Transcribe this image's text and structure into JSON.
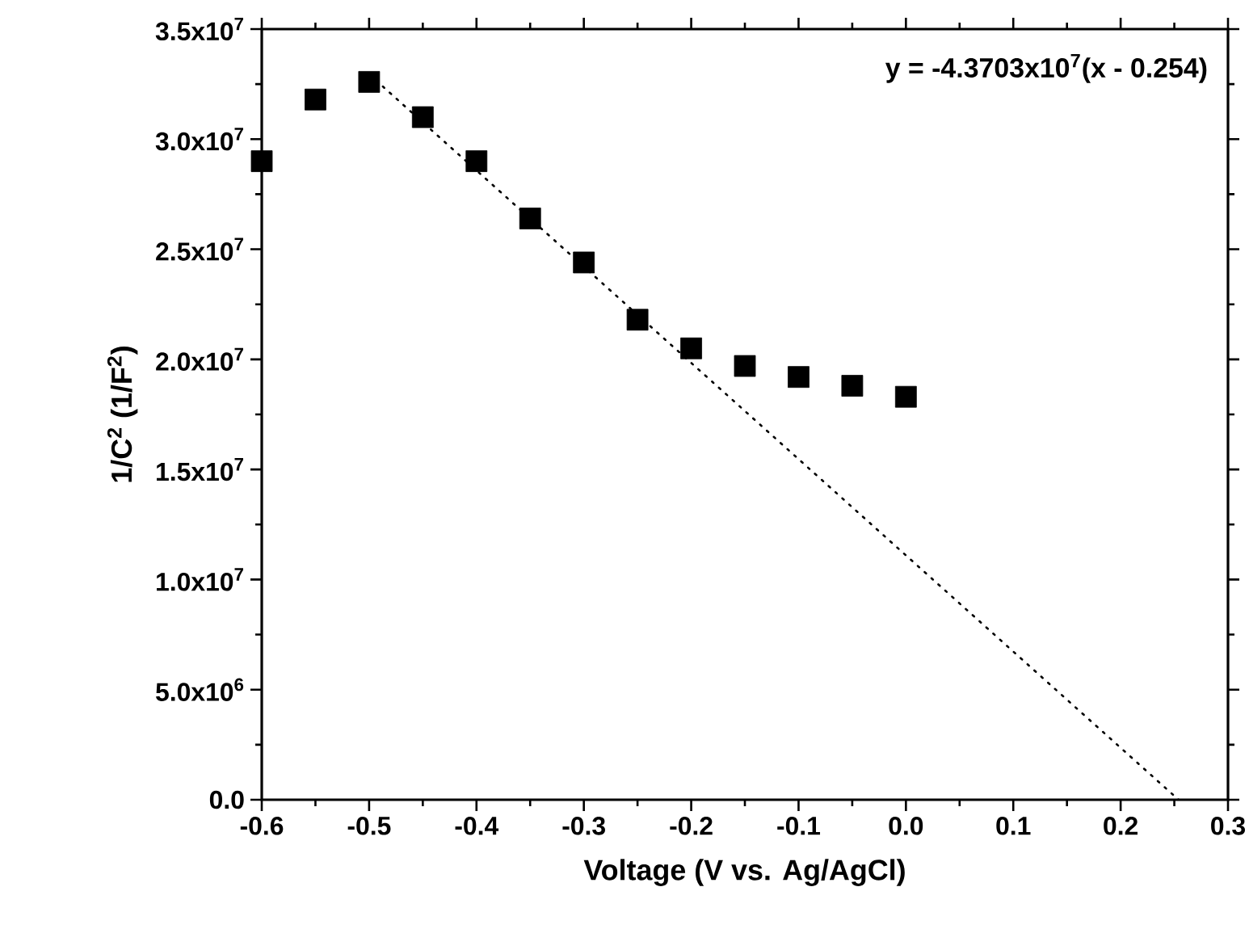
{
  "chart_data": {
    "type": "scatter",
    "xlabel": "Voltage (V vs. Ag/AgCl)",
    "ylabel": "1/C$^{2}$ (1/F$^{2}$)",
    "annotations": [
      "y = -4.3703x10$^{7}$(x - 0.254)"
    ],
    "xlim": [
      -0.6,
      0.3
    ],
    "ylim": [
      0,
      35000000
    ],
    "xticks": [
      -0.6,
      -0.5,
      -0.4,
      -0.3,
      -0.2,
      -0.1,
      {
        "value": 0,
        "label": "0.0"
      },
      0.1,
      0.2,
      0.3
    ],
    "yticks": [
      {
        "value": 0,
        "label": "0.0"
      },
      {
        "value": 5000000,
        "label": "5.0x10$^{6}$"
      },
      {
        "value": 10000000,
        "label": "1.0x10$^{7}$"
      },
      {
        "value": 15000000,
        "label": "1.5x10$^{7}$"
      },
      {
        "value": 20000000,
        "label": "2.0x10$^{7}$"
      },
      {
        "value": 25000000,
        "label": "2.5x10$^{7}$"
      },
      {
        "value": 30000000,
        "label": "3.0x10$^{7}$"
      },
      {
        "value": 35000000,
        "label": "3.5x10$^{7}$"
      }
    ],
    "series": [
      {
        "type": "scatter",
        "color": "#000000",
        "marker": "square",
        "x": [
          -0.6,
          -0.55,
          -0.5,
          -0.45,
          -0.4,
          -0.35,
          -0.3,
          -0.25,
          -0.2,
          -0.15,
          -0.1,
          -0.05,
          0.0
        ],
        "values": [
          29000000,
          31800000,
          32600000,
          31000000,
          29000000,
          26400000,
          24400000,
          21800000,
          20500000,
          19700000,
          19200000,
          18800000,
          18300000
        ]
      },
      {
        "type": "line",
        "color": "#000000",
        "marker": "none",
        "line_style": "dotted",
        "x": [
          -0.5,
          0.254
        ],
        "values": [
          32950000,
          0
        ]
      }
    ]
  }
}
